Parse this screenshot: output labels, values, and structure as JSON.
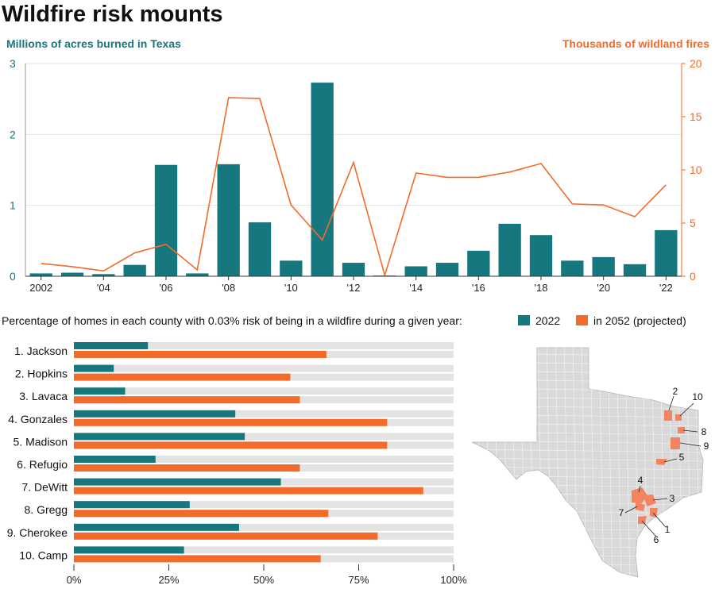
{
  "title": "Wildfire risk mounts",
  "chart_data": [
    {
      "type": "bar+line",
      "xlabel": "",
      "ylabel_left": "Millions of acres burned in Texas",
      "ylabel_right": "Thousands of wildland fires",
      "ylim_left": [
        0,
        3
      ],
      "ylim_right": [
        0,
        20
      ],
      "yticks_left": [
        "0",
        "1",
        "2",
        "3"
      ],
      "yticks_right": [
        "0",
        "5",
        "10",
        "15",
        "20"
      ],
      "years": [
        2002,
        2003,
        2004,
        2005,
        2006,
        2007,
        2008,
        2009,
        2010,
        2011,
        2012,
        2013,
        2014,
        2015,
        2016,
        2017,
        2018,
        2019,
        2020,
        2021,
        2022
      ],
      "xtick_labels": [
        "2002",
        "'04",
        "'06",
        "'08",
        "'10",
        "'12",
        "'14",
        "'16",
        "'18",
        "'20",
        "'22"
      ],
      "series": [
        {
          "name": "Millions of acres burned in Texas",
          "kind": "bar",
          "axis": "left",
          "color": "#17777f",
          "values": [
            0.04,
            0.05,
            0.03,
            0.16,
            1.57,
            0.04,
            1.58,
            0.76,
            0.22,
            2.73,
            0.19,
            0.01,
            0.14,
            0.19,
            0.36,
            0.74,
            0.58,
            0.22,
            0.27,
            0.17,
            0.65
          ]
        },
        {
          "name": "Thousands of wildland fires",
          "kind": "line",
          "axis": "right",
          "color": "#f26b2a",
          "values": [
            1.2,
            0.9,
            0.5,
            2.2,
            3.0,
            0.6,
            16.8,
            16.7,
            6.7,
            3.4,
            10.7,
            0.1,
            9.7,
            9.3,
            9.3,
            9.8,
            10.6,
            6.8,
            6.7,
            5.6,
            8.6
          ]
        }
      ]
    },
    {
      "type": "bar",
      "orientation": "horizontal",
      "title": "Percentage of homes in each county with 0.03% risk of being in a wildfire during a given year:",
      "xlim": [
        0,
        100
      ],
      "xtick_labels": [
        "0%",
        "25%",
        "50%",
        "75%",
        "100%"
      ],
      "legend": [
        "2022",
        "in 2052 (projected)"
      ],
      "categories": [
        "1. Jackson",
        "2. Hopkins",
        "3. Lavaca",
        "4. Gonzales",
        "5. Madison",
        "6. Refugio",
        "7. DeWitt",
        "8. Gregg",
        "9. Cherokee",
        "10. Camp"
      ],
      "series": [
        {
          "name": "2022",
          "color": "#17777f",
          "values": [
            19.5,
            10.5,
            13.5,
            42.5,
            45,
            21.5,
            54.5,
            30.5,
            43.5,
            29
          ]
        },
        {
          "name": "in 2052 (projected)",
          "color": "#f26b2a",
          "values": [
            66.5,
            57,
            59.5,
            82.5,
            82.5,
            59.5,
            92,
            67,
            80,
            65
          ]
        }
      ]
    }
  ],
  "map": {
    "name": "Texas",
    "fill": "#d9d9d9",
    "highlight": "#f4845f",
    "labels": [
      "2",
      "10",
      "8",
      "9",
      "5",
      "4",
      "3",
      "7",
      "1",
      "6"
    ]
  }
}
